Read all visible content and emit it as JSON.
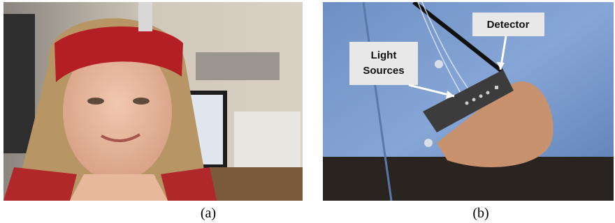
{
  "panels": [
    {
      "caption": "(a)"
    },
    {
      "caption": "(b)",
      "labels": [
        {
          "lines": [
            "Light",
            "Sources"
          ]
        },
        {
          "lines": [
            "Detector"
          ]
        }
      ]
    }
  ]
}
